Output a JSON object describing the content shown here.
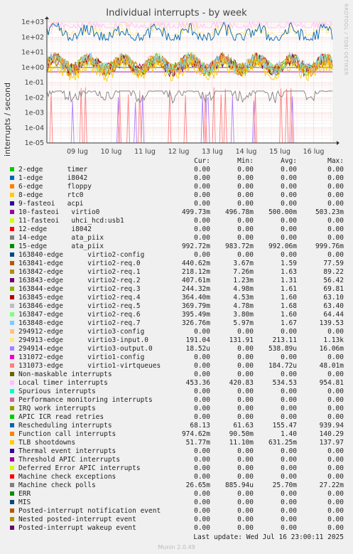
{
  "chart_data": {
    "type": "line",
    "title": "Individual interrupts - by week",
    "ylabel": "interrupts / second",
    "side_label": "RRDTOOL / TOBI OETIKER",
    "y_scale": "log",
    "ylim": [
      1e-05,
      1000
    ],
    "y_ticks": [
      "1e-05",
      "1e-04",
      "1e-03",
      "1e-02",
      "1e-01",
      "1e+00",
      "1e+01",
      "1e+02",
      "1e+03"
    ],
    "x_ticks": [
      "09 lug",
      "10 lug",
      "11 lug",
      "12 lug",
      "13 lug",
      "14 lug",
      "15 lug",
      "16 lug"
    ],
    "grid": true,
    "legend_headers": [
      "Cur:",
      "Min:",
      "Avg:",
      "Max:"
    ],
    "series": [
      {
        "name": "2-edge      timer",
        "color": "#00cc00",
        "cur": "0.00",
        "min": "0.00",
        "avg": "0.00",
        "max": "0.00"
      },
      {
        "name": "1-edge      i8042",
        "color": "#0066b3",
        "cur": "0.00",
        "min": "0.00",
        "avg": "0.00",
        "max": "0.00"
      },
      {
        "name": "6-edge      floppy",
        "color": "#ff8000",
        "cur": "0.00",
        "min": "0.00",
        "avg": "0.00",
        "max": "0.00"
      },
      {
        "name": "8-edge      rtc0",
        "color": "#ffcc00",
        "cur": "0.00",
        "min": "0.00",
        "avg": "0.00",
        "max": "0.00"
      },
      {
        "name": "9-fasteoi   acpi",
        "color": "#330099",
        "cur": "0.00",
        "min": "0.00",
        "avg": "0.00",
        "max": "0.00"
      },
      {
        "name": "10-fasteoi   virtio0",
        "color": "#990099",
        "cur": "499.73m",
        "min": "496.78m",
        "avg": "500.00m",
        "max": "503.23m"
      },
      {
        "name": "11-fasteoi   uhci_hcd:usb1",
        "color": "#ccff00",
        "cur": "0.00",
        "min": "0.00",
        "avg": "0.00",
        "max": "0.00"
      },
      {
        "name": "12-edge      i8042",
        "color": "#ff0000",
        "cur": "0.00",
        "min": "0.00",
        "avg": "0.00",
        "max": "0.00"
      },
      {
        "name": "14-edge      ata_piix",
        "color": "#808080",
        "cur": "0.00",
        "min": "0.00",
        "avg": "0.00",
        "max": "0.00"
      },
      {
        "name": "15-edge      ata_piix",
        "color": "#008f00",
        "cur": "992.72m",
        "min": "983.72m",
        "avg": "992.06m",
        "max": "999.76m"
      },
      {
        "name": "163840-edge      virtio2-config",
        "color": "#00487d",
        "cur": "0.00",
        "min": "0.00",
        "avg": "0.00",
        "max": "0.00"
      },
      {
        "name": "163841-edge      virtio2-req.0",
        "color": "#b35a00",
        "cur": "440.62m",
        "min": "3.67m",
        "avg": "1.59",
        "max": "77.59"
      },
      {
        "name": "163842-edge      virtio2-req.1",
        "color": "#b38f00",
        "cur": "218.12m",
        "min": "7.26m",
        "avg": "1.63",
        "max": "89.22"
      },
      {
        "name": "163843-edge      virtio2-req.2",
        "color": "#6b006b",
        "cur": "407.61m",
        "min": "1.23m",
        "avg": "1.31",
        "max": "56.42"
      },
      {
        "name": "163844-edge      virtio2-req.3",
        "color": "#8fb300",
        "cur": "244.32m",
        "min": "4.98m",
        "avg": "1.61",
        "max": "69.81"
      },
      {
        "name": "163845-edge      virtio2-req.4",
        "color": "#b30000",
        "cur": "364.40m",
        "min": "4.53m",
        "avg": "1.60",
        "max": "63.10"
      },
      {
        "name": "163846-edge      virtio2-req.5",
        "color": "#bebebe",
        "cur": "369.79m",
        "min": "4.78m",
        "avg": "1.68",
        "max": "63.40"
      },
      {
        "name": "163847-edge      virtio2-req.6",
        "color": "#80ff80",
        "cur": "395.49m",
        "min": "3.80m",
        "avg": "1.60",
        "max": "64.44"
      },
      {
        "name": "163848-edge      virtio2-req.7",
        "color": "#80c9ff",
        "cur": "326.76m",
        "min": "5.97m",
        "avg": "1.67",
        "max": "139.53"
      },
      {
        "name": "294912-edge      virtio3-config",
        "color": "#ffc080",
        "cur": "0.00",
        "min": "0.00",
        "avg": "0.00",
        "max": "0.00"
      },
      {
        "name": "294913-edge      virtio3-input.0",
        "color": "#ffe680",
        "cur": "191.04",
        "min": "131.91",
        "avg": "213.11",
        "max": "1.13k"
      },
      {
        "name": "294914-edge      virtio3-output.0",
        "color": "#aa80ff",
        "cur": "18.52u",
        "min": "0.00",
        "avg": "538.89u",
        "max": "16.06m"
      },
      {
        "name": "131072-edge      virtio1-config",
        "color": "#ee00cc",
        "cur": "0.00",
        "min": "0.00",
        "avg": "0.00",
        "max": "0.00"
      },
      {
        "name": "131073-edge      virtio1-virtqueues",
        "color": "#ff8080",
        "cur": "0.00",
        "min": "0.00",
        "avg": "184.72u",
        "max": "48.01m"
      },
      {
        "name": "Non-maskable interrupts",
        "color": "#666600",
        "cur": "0.00",
        "min": "0.00",
        "avg": "0.00",
        "max": "0.00"
      },
      {
        "name": "Local timer interrupts",
        "color": "#ffbfff",
        "cur": "453.36",
        "min": "420.83",
        "avg": "534.53",
        "max": "954.81"
      },
      {
        "name": "Spurious interrupts",
        "color": "#00ffcc",
        "cur": "0.00",
        "min": "0.00",
        "avg": "0.00",
        "max": "0.00"
      },
      {
        "name": "Performance monitoring interrupts",
        "color": "#cc6699",
        "cur": "0.00",
        "min": "0.00",
        "avg": "0.00",
        "max": "0.00"
      },
      {
        "name": "IRQ work interrupts",
        "color": "#999900",
        "cur": "0.00",
        "min": "0.00",
        "avg": "0.00",
        "max": "0.00"
      },
      {
        "name": "APIC ICR read retries",
        "color": "#00cc00",
        "cur": "0.00",
        "min": "0.00",
        "avg": "0.00",
        "max": "0.00"
      },
      {
        "name": "Rescheduling interrupts",
        "color": "#0066b3",
        "cur": "68.13",
        "min": "61.63",
        "avg": "155.47",
        "max": "939.94"
      },
      {
        "name": "Function call interrupts",
        "color": "#ff8000",
        "cur": "974.62m",
        "min": "90.50m",
        "avg": "1.40",
        "max": "140.29"
      },
      {
        "name": "TLB shootdowns",
        "color": "#ffcc00",
        "cur": "51.77m",
        "min": "11.10m",
        "avg": "631.25m",
        "max": "137.97"
      },
      {
        "name": "Thermal event interrupts",
        "color": "#330099",
        "cur": "0.00",
        "min": "0.00",
        "avg": "0.00",
        "max": "0.00"
      },
      {
        "name": "Threshold APIC interrupts",
        "color": "#990099",
        "cur": "0.00",
        "min": "0.00",
        "avg": "0.00",
        "max": "0.00"
      },
      {
        "name": "Deferred Error APIC interrupts",
        "color": "#ccff00",
        "cur": "0.00",
        "min": "0.00",
        "avg": "0.00",
        "max": "0.00"
      },
      {
        "name": "Machine check exceptions",
        "color": "#ff0000",
        "cur": "0.00",
        "min": "0.00",
        "avg": "0.00",
        "max": "0.00"
      },
      {
        "name": "Machine check polls",
        "color": "#808080",
        "cur": "26.65m",
        "min": "885.94u",
        "avg": "25.70m",
        "max": "27.22m"
      },
      {
        "name": "ERR",
        "color": "#008f00",
        "cur": "0.00",
        "min": "0.00",
        "avg": "0.00",
        "max": "0.00"
      },
      {
        "name": "MIS",
        "color": "#00487d",
        "cur": "0.00",
        "min": "0.00",
        "avg": "0.00",
        "max": "0.00"
      },
      {
        "name": "Posted-interrupt notification event",
        "color": "#b35a00",
        "cur": "0.00",
        "min": "0.00",
        "avg": "0.00",
        "max": "0.00"
      },
      {
        "name": "Nested posted-interrupt event",
        "color": "#b38f00",
        "cur": "0.00",
        "min": "0.00",
        "avg": "0.00",
        "max": "0.00"
      },
      {
        "name": "Posted-interrupt wakeup event",
        "color": "#6b006b",
        "cur": "0.00",
        "min": "0.00",
        "avg": "0.00",
        "max": "0.00"
      }
    ]
  },
  "footer": {
    "last_update": "Last update: Wed Jul 16 23:00:11 2025",
    "generator": "Munin 2.0.49"
  }
}
